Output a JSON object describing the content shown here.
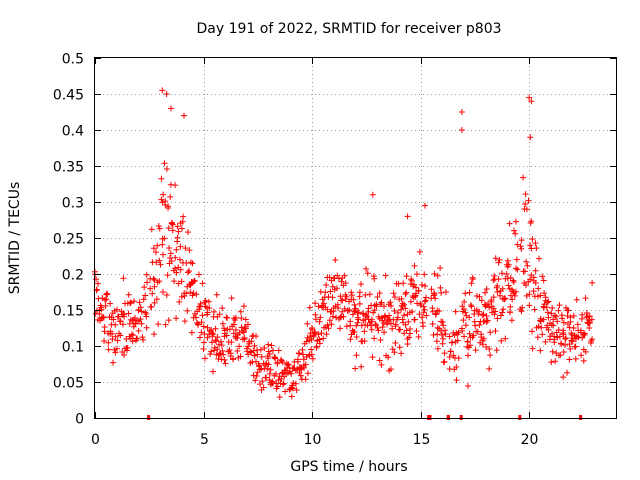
{
  "chart_data": {
    "type": "scatter",
    "title": "Day 191 of 2022, SRMTID for receiver p803",
    "xlabel": "GPS time / hours",
    "ylabel": "SRMTID / TECUs",
    "xlim": [
      0,
      24.0
    ],
    "ylim": [
      0,
      0.5
    ],
    "xticks": [
      0,
      5,
      10,
      15,
      20
    ],
    "xtick_labels": [
      "0",
      "5",
      "10",
      "15",
      "20"
    ],
    "yticks": [
      0,
      0.05,
      0.1,
      0.15,
      0.2,
      0.25,
      0.3,
      0.35,
      0.4,
      0.45,
      0.5
    ],
    "ytick_labels": [
      "0",
      "0.05",
      "0.1",
      "0.15",
      "0.2",
      "0.25",
      "0.3",
      "0.35",
      "0.4",
      "0.45",
      "0.5"
    ],
    "grid": true,
    "marker": "plus",
    "color": "#ff0000",
    "x_step_hours": 0.05,
    "profile": [
      [
        0.0,
        0.18
      ],
      [
        0.5,
        0.14
      ],
      [
        1.0,
        0.12
      ],
      [
        1.5,
        0.13
      ],
      [
        2.0,
        0.14
      ],
      [
        2.5,
        0.17
      ],
      [
        2.9,
        0.22
      ],
      [
        3.2,
        0.26
      ],
      [
        3.6,
        0.24
      ],
      [
        4.0,
        0.22
      ],
      [
        4.4,
        0.19
      ],
      [
        4.8,
        0.15
      ],
      [
        5.3,
        0.12
      ],
      [
        5.8,
        0.11
      ],
      [
        6.5,
        0.12
      ],
      [
        7.0,
        0.11
      ],
      [
        7.5,
        0.08
      ],
      [
        8.0,
        0.07
      ],
      [
        8.5,
        0.065
      ],
      [
        9.0,
        0.06
      ],
      [
        9.5,
        0.07
      ],
      [
        10.0,
        0.12
      ],
      [
        10.5,
        0.14
      ],
      [
        11.0,
        0.17
      ],
      [
        11.5,
        0.16
      ],
      [
        12.0,
        0.13
      ],
      [
        12.5,
        0.14
      ],
      [
        13.0,
        0.15
      ],
      [
        13.5,
        0.13
      ],
      [
        14.0,
        0.14
      ],
      [
        14.5,
        0.15
      ],
      [
        15.0,
        0.16
      ],
      [
        15.5,
        0.16
      ],
      [
        16.0,
        0.13
      ],
      [
        16.5,
        0.1
      ],
      [
        17.0,
        0.12
      ],
      [
        17.5,
        0.13
      ],
      [
        18.0,
        0.14
      ],
      [
        18.5,
        0.16
      ],
      [
        19.0,
        0.18
      ],
      [
        19.5,
        0.21
      ],
      [
        19.8,
        0.24
      ],
      [
        20.1,
        0.22
      ],
      [
        20.5,
        0.15
      ],
      [
        21.0,
        0.12
      ],
      [
        21.5,
        0.12
      ],
      [
        22.0,
        0.11
      ],
      [
        22.5,
        0.12
      ],
      [
        22.9,
        0.14
      ]
    ],
    "spread": [
      [
        0.0,
        0.04
      ],
      [
        2.6,
        0.05
      ],
      [
        3.3,
        0.1
      ],
      [
        4.2,
        0.06
      ],
      [
        5.0,
        0.05
      ],
      [
        7.5,
        0.035
      ],
      [
        9.5,
        0.03
      ],
      [
        10.5,
        0.05
      ],
      [
        15.0,
        0.05
      ],
      [
        19.0,
        0.06
      ],
      [
        20.0,
        0.09
      ],
      [
        21.0,
        0.05
      ],
      [
        22.9,
        0.04
      ]
    ],
    "spikes": [
      {
        "x": 3.1,
        "y": 0.455
      },
      {
        "x": 3.3,
        "y": 0.45
      },
      {
        "x": 3.5,
        "y": 0.43
      },
      {
        "x": 4.1,
        "y": 0.42
      },
      {
        "x": 16.9,
        "y": 0.425
      },
      {
        "x": 16.9,
        "y": 0.4
      },
      {
        "x": 20.0,
        "y": 0.445
      },
      {
        "x": 20.1,
        "y": 0.44
      },
      {
        "x": 20.05,
        "y": 0.39
      },
      {
        "x": 12.8,
        "y": 0.31
      },
      {
        "x": 15.2,
        "y": 0.295
      },
      {
        "x": 14.4,
        "y": 0.28
      },
      {
        "x": 19.1,
        "y": 0.27
      }
    ],
    "data_gaps": [
      {
        "start": 2.4,
        "end": 2.5
      },
      {
        "start": 15.3,
        "end": 15.5
      },
      {
        "start": 16.2,
        "end": 16.35
      },
      {
        "start": 16.8,
        "end": 16.9
      },
      {
        "start": 19.5,
        "end": 19.6
      },
      {
        "start": 22.3,
        "end": 22.4
      }
    ],
    "seed": 191
  }
}
